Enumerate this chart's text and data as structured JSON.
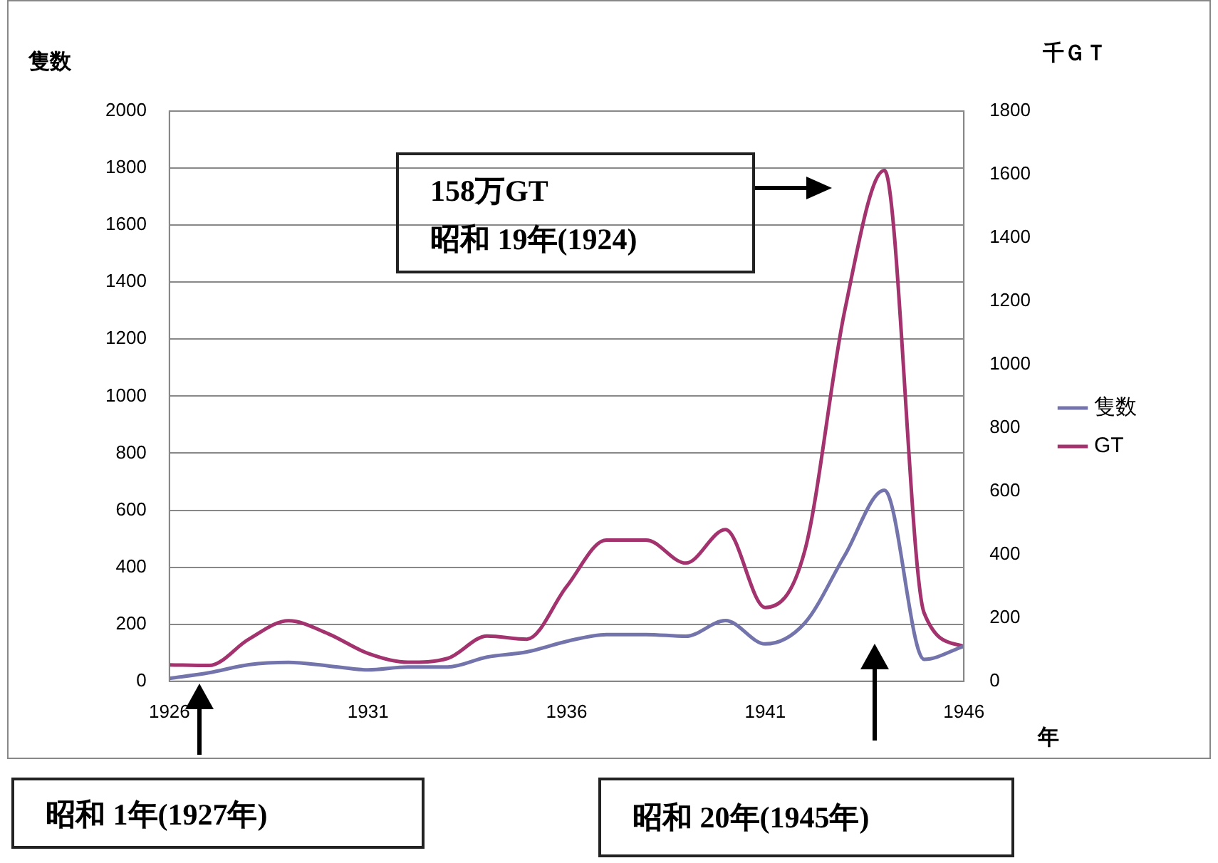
{
  "chart_data": {
    "type": "line",
    "ylabel": "隻数",
    "y2label": "千ＧＴ",
    "xlabel": "年",
    "x": [
      1926,
      1927,
      1928,
      1929,
      1930,
      1931,
      1932,
      1933,
      1934,
      1935,
      1936,
      1937,
      1938,
      1939,
      1940,
      1941,
      1942,
      1943,
      1944,
      1945,
      1946
    ],
    "series": [
      {
        "name": "隻数",
        "color": "#7474ac",
        "values": [
          10,
          30,
          58,
          66,
          54,
          40,
          50,
          50,
          85,
          103,
          140,
          164,
          164,
          158,
          213,
          131,
          205,
          441,
          670,
          77,
          123
        ]
      },
      {
        "name": "GT",
        "color": "#a3336e",
        "axis": "y2",
        "values": [
          52,
          50,
          133,
          191,
          150,
          88,
          60,
          72,
          143,
          133,
          299,
          446,
          446,
          373,
          479,
          233,
          414,
          1169,
          1613,
          216,
          110
        ]
      }
    ],
    "xlim": [
      1926,
      1946
    ],
    "xticks": [
      1926,
      1931,
      1936,
      1941,
      1946
    ],
    "ylim": [
      0,
      2000
    ],
    "yticks": [
      0,
      200,
      400,
      600,
      800,
      1000,
      1200,
      1400,
      1600,
      1800,
      2000
    ],
    "y2lim": [
      0,
      1800
    ],
    "y2ticks": [
      0,
      200,
      400,
      600,
      800,
      1000,
      1200,
      1400,
      1600,
      1800
    ],
    "grid": "y",
    "legend": "right",
    "marker": "none",
    "line_style": "solid",
    "annotations": [
      "158万GT\n昭和 19年(1924)",
      "昭和 1年(1927年)",
      "昭和 20年(1945年)"
    ]
  }
}
